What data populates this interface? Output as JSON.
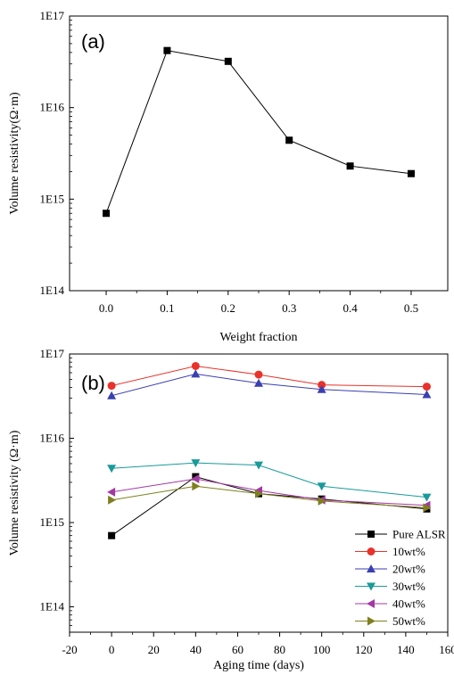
{
  "chart_data": [
    {
      "type": "line",
      "panel_label": "(a)",
      "title": "",
      "xlabel": "Weight fraction",
      "ylabel": "Volume resistivity(Ω·m)",
      "y_scale": "log",
      "xlim": [
        -0.06,
        0.56
      ],
      "ylim": [
        100000000000000.0,
        1e+17
      ],
      "x_ticks": [
        0.0,
        0.1,
        0.2,
        0.3,
        0.4,
        0.5
      ],
      "x_tick_labels": [
        "0.0",
        "0.1",
        "0.2",
        "0.3",
        "0.4",
        "0.5"
      ],
      "y_ticks": [
        100000000000000.0,
        1000000000000000.0,
        1e+16,
        1e+17
      ],
      "y_tick_labels": [
        "1E14",
        "1E15",
        "1E16",
        "1E17"
      ],
      "grid": false,
      "series": [
        {
          "color": "#000000",
          "marker": "square",
          "x": [
            0.0,
            0.1,
            0.2,
            0.3,
            0.4,
            0.5
          ],
          "values": [
            700000000000000.0,
            4.2e+16,
            3.2e+16,
            4400000000000000.0,
            2300000000000000.0,
            1900000000000000.0
          ]
        }
      ]
    },
    {
      "type": "line",
      "panel_label": "(b)",
      "title": "",
      "xlabel": "Aging time (days)",
      "ylabel": "Volume resistivity (Ω·m)",
      "y_scale": "log",
      "xlim": [
        -20,
        160
      ],
      "ylim": [
        50000000000000.0,
        1e+17
      ],
      "x_ticks": [
        -20,
        0,
        20,
        40,
        60,
        80,
        100,
        120,
        140,
        160
      ],
      "x_tick_labels": [
        "-20",
        "0",
        "20",
        "40",
        "60",
        "80",
        "100",
        "120",
        "140",
        "160"
      ],
      "y_ticks": [
        100000000000000.0,
        1000000000000000.0,
        1e+16,
        1e+17
      ],
      "y_tick_labels": [
        "1E14",
        "1E15",
        "1E16",
        "1E17"
      ],
      "grid": false,
      "legend_position": "bottom-right",
      "x": [
        0,
        40,
        70,
        100,
        150
      ],
      "series": [
        {
          "name": "Pure ALSR",
          "color": "#000000",
          "marker": "square",
          "values": [
            700000000000000.0,
            3500000000000000.0,
            2200000000000000.0,
            1900000000000000.0,
            1450000000000000.0
          ]
        },
        {
          "name": "10wt%",
          "color": "#e8322b",
          "marker": "circle",
          "values": [
            4.2e+16,
            7.2e+16,
            5.7e+16,
            4.3e+16,
            4.1e+16
          ]
        },
        {
          "name": "20wt%",
          "color": "#3a3fb0",
          "marker": "triangle-up",
          "values": [
            3.2e+16,
            5.8e+16,
            4.5e+16,
            3.8e+16,
            3.3e+16
          ]
        },
        {
          "name": "30wt%",
          "color": "#1a9a9a",
          "marker": "triangle-down",
          "values": [
            4400000000000000.0,
            5100000000000000.0,
            4800000000000000.0,
            2700000000000000.0,
            2000000000000000.0
          ]
        },
        {
          "name": "40wt%",
          "color": "#a338a3",
          "marker": "triangle-left",
          "values": [
            2300000000000000.0,
            3300000000000000.0,
            2400000000000000.0,
            1850000000000000.0,
            1600000000000000.0
          ]
        },
        {
          "name": "50wt%",
          "color": "#7f7f1f",
          "marker": "triangle-right",
          "values": [
            1850000000000000.0,
            2700000000000000.0,
            2200000000000000.0,
            1800000000000000.0,
            1500000000000000.0
          ]
        }
      ]
    }
  ]
}
